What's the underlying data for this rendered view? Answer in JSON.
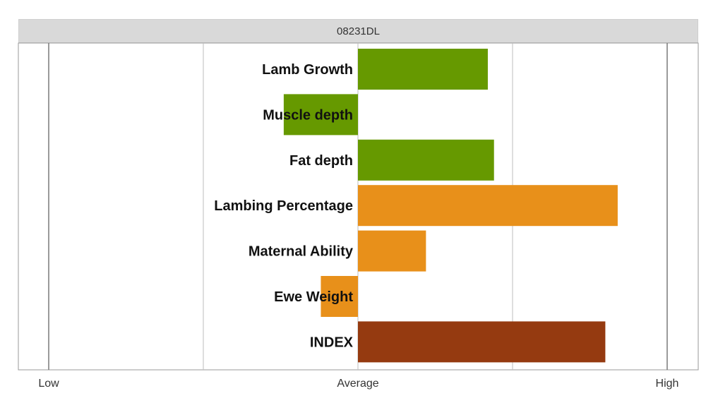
{
  "chart_data": {
    "type": "bar",
    "orientation": "horizontal",
    "title": "08231DL",
    "categories": [
      "Lamb Growth",
      "Muscle depth",
      "Fat depth",
      "Lambing Percentage",
      "Maternal Ability",
      "Ewe Weight",
      "INDEX"
    ],
    "values": [
      0.42,
      -0.24,
      0.44,
      0.84,
      0.22,
      -0.12,
      0.8
    ],
    "colors": [
      "#669900",
      "#669900",
      "#669900",
      "#E8901A",
      "#E8901A",
      "#E8901A",
      "#953A10"
    ],
    "xlim": [
      -1,
      1
    ],
    "x_tick_values": [
      -1,
      -0.5,
      0,
      0.5,
      1
    ],
    "x_tick_labels": {
      "low": "Low",
      "average": "Average",
      "high": "High"
    },
    "grid": true
  }
}
